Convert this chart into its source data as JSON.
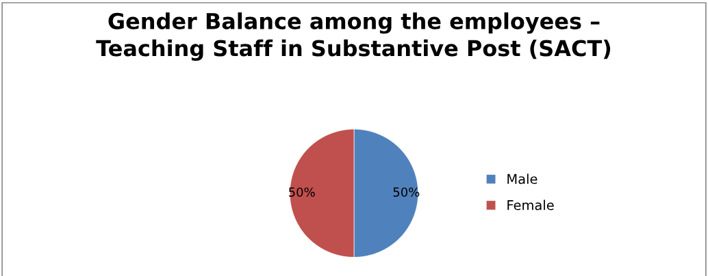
{
  "chart_data": {
    "type": "pie",
    "title": "Gender Balance among the employees –\nTeaching Staff in Substantive Post (SACT)",
    "categories": [
      "Male",
      "Female"
    ],
    "values": [
      50,
      50
    ],
    "colors": [
      "#4f81bd",
      "#c0504d"
    ],
    "value_labels": [
      "50%",
      "50%"
    ],
    "legend": "right"
  }
}
